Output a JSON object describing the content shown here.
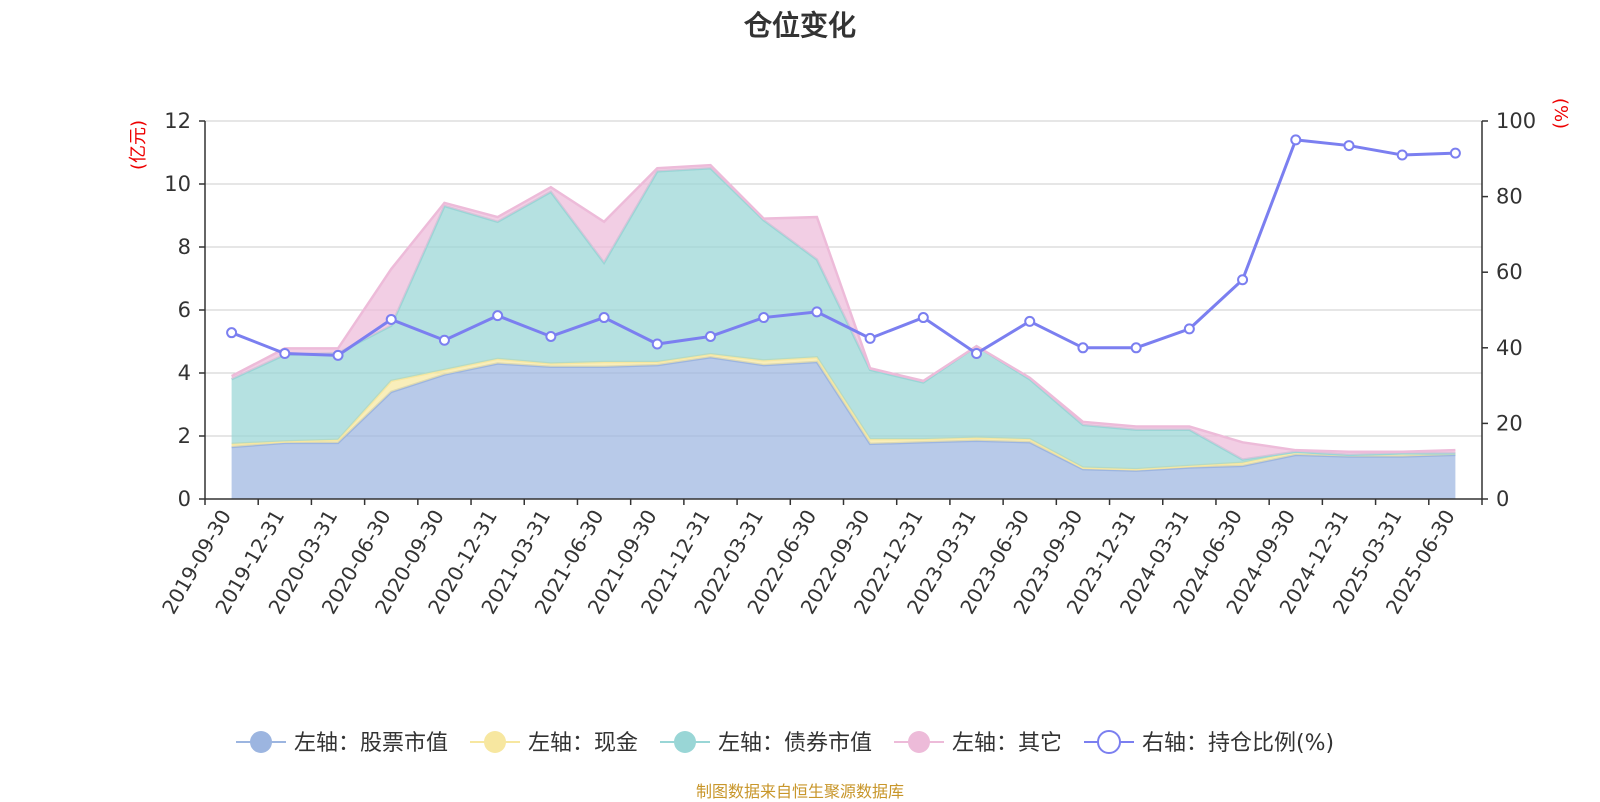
{
  "title": "仓位变化",
  "left_axis_unit": "(亿元)",
  "right_axis_unit": "(%)",
  "source_note": "制图数据来自恒生聚源数据库",
  "chart_data": {
    "type": "area",
    "x": [
      "2019-09-30",
      "2019-12-31",
      "2020-03-31",
      "2020-06-30",
      "2020-09-30",
      "2020-12-31",
      "2021-03-31",
      "2021-06-30",
      "2021-09-30",
      "2021-12-31",
      "2022-03-31",
      "2022-06-30",
      "2022-09-30",
      "2022-12-31",
      "2023-03-31",
      "2023-06-30",
      "2023-09-30",
      "2023-12-31",
      "2024-03-31",
      "2024-06-30",
      "2024-09-30",
      "2024-12-31",
      "2025-03-31",
      "2025-06-30"
    ],
    "y_left": {
      "min": 0,
      "max": 12,
      "ticks": [
        0,
        2,
        4,
        6,
        8,
        10,
        12
      ]
    },
    "y_right": {
      "min": 0,
      "max": 100,
      "ticks": [
        0,
        20,
        40,
        60,
        80,
        100
      ]
    },
    "stacked_series": [
      {
        "name": "左轴：股票市值",
        "color": "#9cb5e0",
        "values": [
          1.65,
          1.78,
          1.78,
          3.4,
          3.95,
          4.3,
          4.2,
          4.2,
          4.25,
          4.5,
          4.25,
          4.35,
          1.75,
          1.8,
          1.85,
          1.8,
          0.95,
          0.9,
          1.0,
          1.05,
          1.4,
          1.35,
          1.35,
          1.4
        ]
      },
      {
        "name": "左轴：现金",
        "color": "#f7e7a0",
        "values": [
          0.1,
          0.05,
          0.1,
          0.35,
          0.15,
          0.15,
          0.1,
          0.15,
          0.1,
          0.1,
          0.15,
          0.15,
          0.15,
          0.1,
          0.1,
          0.1,
          0.05,
          0.05,
          0.05,
          0.1,
          0.1,
          0.05,
          0.1,
          0.05
        ]
      },
      {
        "name": "左轴：债券市值",
        "color": "#99d6d6",
        "values": [
          2.05,
          2.75,
          2.75,
          1.75,
          5.2,
          4.35,
          5.45,
          3.15,
          6.05,
          5.9,
          4.45,
          3.1,
          2.2,
          1.8,
          2.9,
          1.9,
          1.35,
          1.25,
          1.15,
          0.1,
          0,
          0,
          0,
          0
        ]
      },
      {
        "name": "左轴：其它",
        "color": "#edbbd9",
        "values": [
          0.1,
          0.2,
          0.15,
          1.8,
          0.1,
          0.15,
          0.15,
          1.3,
          0.1,
          0.1,
          0.05,
          1.35,
          0.05,
          0.05,
          0,
          0.05,
          0.1,
          0.1,
          0.1,
          0.55,
          0.05,
          0.1,
          0.05,
          0.1
        ]
      }
    ],
    "line_series": {
      "name": "右轴：持仓比例(%)",
      "color": "#7b7ff0",
      "values": [
        44,
        38.5,
        38,
        47.5,
        42,
        48.5,
        43,
        48,
        41,
        43,
        48,
        49.5,
        42.5,
        48,
        38.5,
        47,
        40,
        40,
        45,
        58,
        95,
        93.5,
        91,
        91.5
      ]
    },
    "grid": true,
    "legend_position": "bottom"
  }
}
